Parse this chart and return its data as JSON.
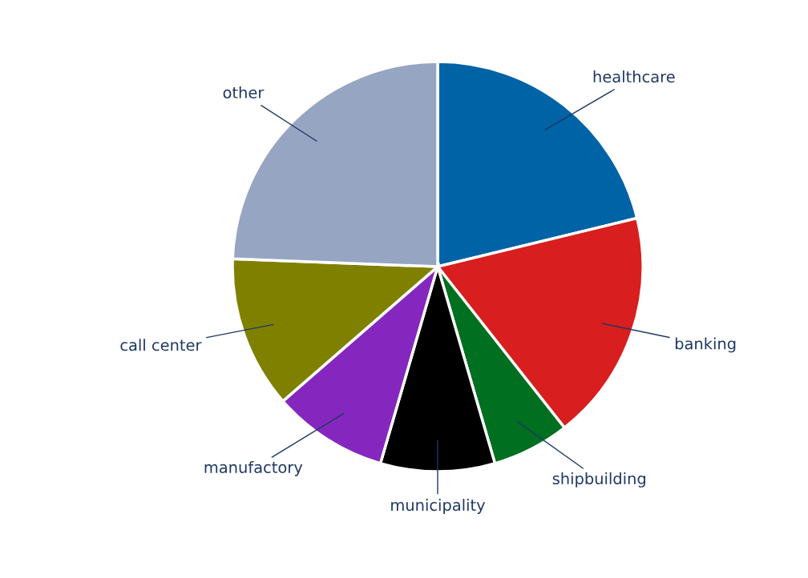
{
  "chart_data": {
    "type": "pie",
    "categories": [
      "healthcare",
      "banking",
      "shipbuilding",
      "municipality",
      "manufactory",
      "call center",
      "other"
    ],
    "values": [
      21.2,
      18.2,
      6.1,
      9.0,
      9.1,
      12.0,
      24.4
    ],
    "colors": [
      "#0063a6",
      "#d81e1e",
      "#006f20",
      "#000000",
      "#8527be",
      "#808000",
      "#96a5c2"
    ],
    "legend": false
  }
}
